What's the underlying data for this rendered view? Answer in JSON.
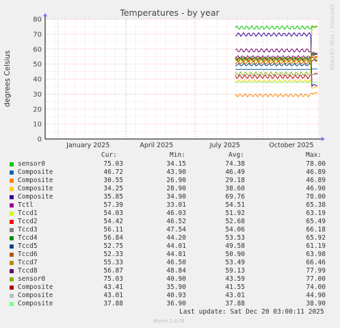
{
  "chart_data": {
    "type": "line",
    "title": "Temperatures - by year",
    "ylabel": "degrees Celsius",
    "ylim": [
      0,
      80
    ],
    "yticks": [
      0,
      10,
      20,
      30,
      40,
      50,
      60,
      70,
      80
    ],
    "xtick_labels": [
      "January 2025",
      "April 2025",
      "July 2025",
      "October 2025"
    ],
    "grid": true,
    "legend_placement": "bottom",
    "legend_headers": {
      "cur": "Cur:",
      "min": "Min:",
      "avg": "Avg:",
      "max": "Max:"
    },
    "series": [
      {
        "name": "sensor0",
        "color": "#00cc00",
        "cur": "75.03",
        "min": "34.15",
        "avg": "74.38",
        "max": "78.00"
      },
      {
        "name": "Composite",
        "color": "#0066b3",
        "cur": "46.72",
        "min": "43.90",
        "avg": "46.49",
        "max": "46.89"
      },
      {
        "name": "Composite",
        "color": "#ff8000",
        "cur": "30.55",
        "min": "26.90",
        "avg": "29.18",
        "max": "46.89"
      },
      {
        "name": "Composite",
        "color": "#ffcc00",
        "cur": "34.25",
        "min": "28.90",
        "avg": "38.60",
        "max": "46.90"
      },
      {
        "name": "Composite",
        "color": "#330099",
        "cur": "35.85",
        "min": "34.90",
        "avg": "69.76",
        "max": "78.00"
      },
      {
        "name": "Tctl",
        "color": "#990099",
        "cur": "57.39",
        "min": "33.01",
        "avg": "54.51",
        "max": "65.38"
      },
      {
        "name": "Tccd1",
        "color": "#ccff00",
        "cur": "54.03",
        "min": "46.03",
        "avg": "51.92",
        "max": "63.19"
      },
      {
        "name": "Tccd2",
        "color": "#ff0000",
        "cur": "54.42",
        "min": "46.52",
        "avg": "52.68",
        "max": "65.49"
      },
      {
        "name": "Tccd3",
        "color": "#808080",
        "cur": "56.11",
        "min": "47.54",
        "avg": "54.06",
        "max": "66.18"
      },
      {
        "name": "Tccd4",
        "color": "#008f00",
        "cur": "56.84",
        "min": "44.20",
        "avg": "53.53",
        "max": "65.92"
      },
      {
        "name": "Tccd5",
        "color": "#00487d",
        "cur": "52.75",
        "min": "44.01",
        "avg": "49.58",
        "max": "61.19"
      },
      {
        "name": "Tccd6",
        "color": "#b35a00",
        "cur": "52.33",
        "min": "44.81",
        "avg": "50.90",
        "max": "63.98"
      },
      {
        "name": "Tccd7",
        "color": "#b38f00",
        "cur": "55.33",
        "min": "46.50",
        "avg": "53.49",
        "max": "66.46"
      },
      {
        "name": "Tccd8",
        "color": "#6b006b",
        "cur": "56.87",
        "min": "48.84",
        "avg": "59.13",
        "max": "77.99"
      },
      {
        "name": "sensor0",
        "color": "#8fb300",
        "cur": "75.03",
        "min": "40.90",
        "avg": "43.59",
        "max": "77.00"
      },
      {
        "name": "Composite",
        "color": "#b30000",
        "cur": "43.41",
        "min": "35.90",
        "avg": "41.55",
        "max": "74.00"
      },
      {
        "name": "Composite",
        "color": "#bebebe",
        "cur": "43.01",
        "min": "40.93",
        "avg": "43.01",
        "max": "44.90"
      },
      {
        "name": "Composite",
        "color": "#80ff80",
        "cur": "37.88",
        "min": "36.90",
        "avg": "37.88",
        "max": "38.90"
      }
    ]
  },
  "side_label": "RRDTOOL / TOBI OETIKER",
  "last_update": "Last update: Sat Dec 20 03:00:11 2025",
  "footer": "Munin 2.0.76"
}
